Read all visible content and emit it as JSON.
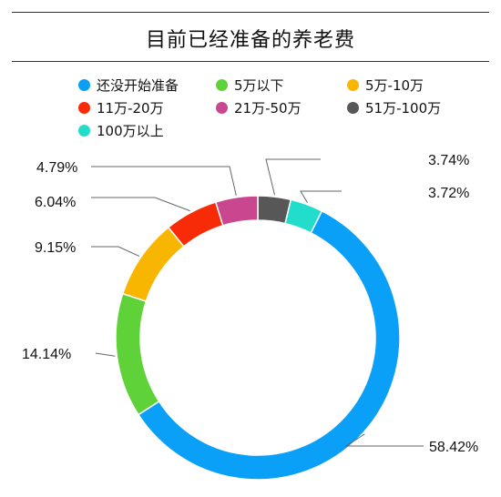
{
  "title": "目前已经准备的养老费",
  "chart_data": {
    "type": "pie",
    "style": "donut",
    "title": "目前已经准备的养老费",
    "slices": [
      {
        "label": "还没开始准备",
        "value": 58.42,
        "text": "58.42%",
        "color": "#0aa0f8"
      },
      {
        "label": "5万以下",
        "value": 14.14,
        "text": "14.14%",
        "color": "#5fd239"
      },
      {
        "label": "5万-10万",
        "value": 9.15,
        "text": "9.15%",
        "color": "#f8b600"
      },
      {
        "label": "11万-20万",
        "value": 6.04,
        "text": "6.04%",
        "color": "#f82b08"
      },
      {
        "label": "21万-50万",
        "value": 4.79,
        "text": "4.79%",
        "color": "#c9478f"
      },
      {
        "label": "51万-100万",
        "value": 3.74,
        "text": "3.74%",
        "color": "#575757"
      },
      {
        "label": "100万以上",
        "value": 3.72,
        "text": "3.72%",
        "color": "#22ddcc"
      }
    ],
    "legend": "top"
  }
}
